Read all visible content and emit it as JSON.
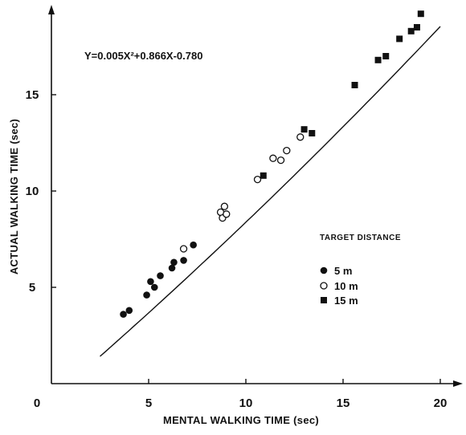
{
  "chart_data": {
    "type": "scatter",
    "title": "",
    "xlabel": "MENTAL WALKING TIME (sec)",
    "ylabel": "ACTUAL WALKING TIME (sec)",
    "xlim": [
      0,
      21
    ],
    "ylim": [
      0,
      19.5
    ],
    "x_ticks": [
      0,
      5,
      10,
      15,
      20
    ],
    "y_ticks": [
      5,
      10,
      15
    ],
    "grid": false,
    "equation": "Y=0.005X²+0.866X-0.780",
    "fit": {
      "a": 0.005,
      "b": 0.866,
      "c": -0.78,
      "x_range": [
        2.5,
        20.0
      ]
    },
    "legend": {
      "title": "TARGET DISTANCE",
      "position": "right",
      "entries": [
        "5 m",
        "10 m",
        "15 m"
      ]
    },
    "series": [
      {
        "name": "5 m",
        "marker": "filled-circle",
        "points": [
          [
            3.7,
            3.6
          ],
          [
            4.0,
            3.8
          ],
          [
            4.9,
            4.6
          ],
          [
            5.1,
            5.3
          ],
          [
            5.3,
            5.0
          ],
          [
            5.6,
            5.6
          ],
          [
            6.2,
            6.0
          ],
          [
            6.3,
            6.3
          ],
          [
            6.8,
            6.4
          ],
          [
            7.3,
            7.2
          ]
        ]
      },
      {
        "name": "10 m",
        "marker": "open-circle",
        "points": [
          [
            6.8,
            7.0
          ],
          [
            8.7,
            8.9
          ],
          [
            8.8,
            8.6
          ],
          [
            8.9,
            9.2
          ],
          [
            9.0,
            8.8
          ],
          [
            10.6,
            10.6
          ],
          [
            11.4,
            11.7
          ],
          [
            11.8,
            11.6
          ],
          [
            12.1,
            12.1
          ],
          [
            12.8,
            12.8
          ]
        ]
      },
      {
        "name": "15 m",
        "marker": "filled-square",
        "points": [
          [
            10.9,
            10.8
          ],
          [
            13.0,
            13.2
          ],
          [
            13.4,
            13.0
          ],
          [
            15.6,
            15.5
          ],
          [
            16.8,
            16.8
          ],
          [
            17.2,
            17.0
          ],
          [
            17.9,
            17.9
          ],
          [
            18.5,
            18.3
          ],
          [
            18.8,
            18.5
          ],
          [
            19.0,
            19.2
          ]
        ]
      }
    ]
  }
}
